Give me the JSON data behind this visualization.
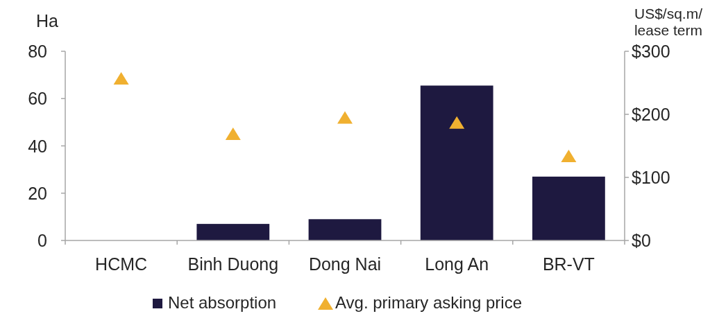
{
  "chart_data": {
    "type": "bar",
    "categories": [
      "HCMC",
      "Binh Duong",
      "Dong Nai",
      "Long An",
      "BR-VT"
    ],
    "series": [
      {
        "name": "Net absorption",
        "type": "bar",
        "color": "#1e1940",
        "values": [
          0,
          7,
          9,
          65.5,
          27
        ]
      },
      {
        "name": "Avg. primary asking price",
        "type": "scatter",
        "axis": "y2",
        "color": "#f0b030",
        "marker": "triangle",
        "values": [
          256,
          168,
          194,
          186,
          133
        ]
      }
    ],
    "ylabel": "Ha",
    "y2label": "US$/sq.m/ lease term",
    "ylim": [
      0,
      80
    ],
    "yticks": [
      0,
      20,
      40,
      60,
      80
    ],
    "y2lim": [
      0,
      300
    ],
    "y2ticks": [
      {
        "value": 0,
        "label": "$0"
      },
      {
        "value": 100,
        "label": "$100"
      },
      {
        "value": 200,
        "label": "$200"
      },
      {
        "value": 300,
        "label": "$300"
      }
    ],
    "grid": false,
    "legend": "bottom"
  }
}
